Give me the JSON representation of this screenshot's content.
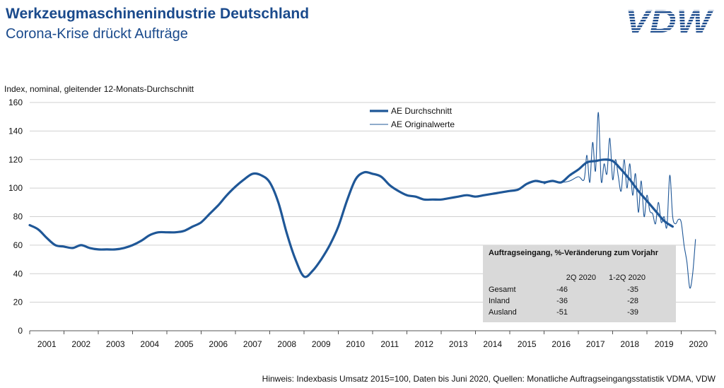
{
  "header": {
    "title": "Werkzeugmaschinenindustrie Deutschland",
    "subtitle": "Corona-Krise drückt Aufträge",
    "logo_text": "VDW"
  },
  "footnote": "Hinweis: Indexbasis Umsatz 2015=100, Daten bis Juni 2020, Quellen: Monatliche Auftragseingangsstatistik VDMA, VDW",
  "colors": {
    "brand": "#1a4a8c",
    "series": "#1f5797",
    "table_bg": "#d9d9d9"
  },
  "chart_data": {
    "type": "line",
    "ylabel": "Index, nominal, gleitender 12-Monats-Durchschnitt",
    "xlabel": "",
    "ylim": [
      0,
      160
    ],
    "yticks": [
      0,
      20,
      40,
      60,
      80,
      100,
      120,
      140,
      160
    ],
    "xlim": [
      "2001-01",
      "2020-12"
    ],
    "xticks": [
      "2001",
      "2002",
      "2003",
      "2004",
      "2005",
      "2006",
      "2007",
      "2008",
      "2009",
      "2010",
      "2011",
      "2012",
      "2013",
      "2014",
      "2015",
      "2016",
      "2017",
      "2018",
      "2019",
      "2020"
    ],
    "grid": "horizontal",
    "legend": "top-center",
    "series": [
      {
        "name": "AE Durchschnitt",
        "style": "thick",
        "x": [
          "2001-01",
          "2001-04",
          "2001-07",
          "2001-10",
          "2002-01",
          "2002-04",
          "2002-07",
          "2002-10",
          "2003-01",
          "2003-04",
          "2003-07",
          "2003-10",
          "2004-01",
          "2004-04",
          "2004-07",
          "2004-10",
          "2005-01",
          "2005-04",
          "2005-07",
          "2005-10",
          "2006-01",
          "2006-04",
          "2006-07",
          "2006-10",
          "2007-01",
          "2007-04",
          "2007-07",
          "2007-10",
          "2008-01",
          "2008-04",
          "2008-07",
          "2008-10",
          "2009-01",
          "2009-04",
          "2009-07",
          "2009-10",
          "2010-01",
          "2010-04",
          "2010-07",
          "2010-10",
          "2011-01",
          "2011-04",
          "2011-07",
          "2011-10",
          "2012-01",
          "2012-04",
          "2012-07",
          "2012-10",
          "2013-01",
          "2013-04",
          "2013-07",
          "2013-10",
          "2014-01",
          "2014-04",
          "2014-07",
          "2014-10",
          "2015-01",
          "2015-04",
          "2015-07",
          "2015-10",
          "2016-01",
          "2016-04",
          "2016-07",
          "2016-10",
          "2017-01",
          "2017-04",
          "2017-07",
          "2017-10",
          "2018-01",
          "2018-04",
          "2018-07",
          "2018-10",
          "2019-01",
          "2019-04",
          "2019-07",
          "2019-10"
        ],
        "y": [
          74,
          71,
          65,
          60,
          59,
          58,
          60,
          58,
          57,
          57,
          57,
          58,
          60,
          63,
          67,
          69,
          69,
          69,
          70,
          73,
          76,
          82,
          88,
          95,
          101,
          106,
          110,
          109,
          104,
          90,
          68,
          50,
          38,
          42,
          50,
          60,
          73,
          91,
          106,
          111,
          110,
          108,
          102,
          98,
          95,
          94,
          92,
          92,
          92,
          93,
          94,
          95,
          94,
          95,
          96,
          97,
          98,
          99,
          103,
          105,
          104,
          105,
          104,
          109,
          113,
          118,
          119,
          120,
          119,
          113,
          106,
          98,
          91,
          84,
          77,
          73
        ]
      },
      {
        "name": "AE Originalwerte",
        "style": "thin",
        "x": [
          "2016-01",
          "2016-04",
          "2016-07",
          "2016-10",
          "2017-01",
          "2017-03",
          "2017-04",
          "2017-05",
          "2017-06",
          "2017-07",
          "2017-08",
          "2017-09",
          "2017-10",
          "2017-11",
          "2017-12",
          "2018-01",
          "2018-02",
          "2018-03",
          "2018-04",
          "2018-05",
          "2018-06",
          "2018-07",
          "2018-08",
          "2018-09",
          "2018-10",
          "2018-11",
          "2018-12",
          "2019-01",
          "2019-02",
          "2019-03",
          "2019-04",
          "2019-05",
          "2019-06",
          "2019-07",
          "2019-08",
          "2019-09",
          "2019-10",
          "2019-11",
          "2019-12",
          "2020-01",
          "2020-02",
          "2020-03",
          "2020-04",
          "2020-05",
          "2020-06"
        ],
        "y": [
          103,
          105,
          104,
          105,
          108,
          106,
          123,
          104,
          132,
          112,
          153,
          105,
          117,
          110,
          135,
          106,
          120,
          108,
          98,
          120,
          100,
          117,
          95,
          110,
          83,
          105,
          80,
          95,
          84,
          82,
          75,
          90,
          76,
          80,
          73,
          109,
          80,
          75,
          78,
          76,
          60,
          48,
          30,
          40,
          64
        ]
      }
    ]
  },
  "table": {
    "title": "Auftragseingang, %-Veränderung zum Vorjahr",
    "columns": [
      "2Q 2020",
      "1-2Q 2020"
    ],
    "rows": [
      {
        "label": "Gesamt",
        "values": [
          "-46",
          "-35"
        ]
      },
      {
        "label": "Inland",
        "values": [
          "-36",
          "-28"
        ]
      },
      {
        "label": "Ausland",
        "values": [
          "-51",
          "-39"
        ]
      }
    ]
  }
}
